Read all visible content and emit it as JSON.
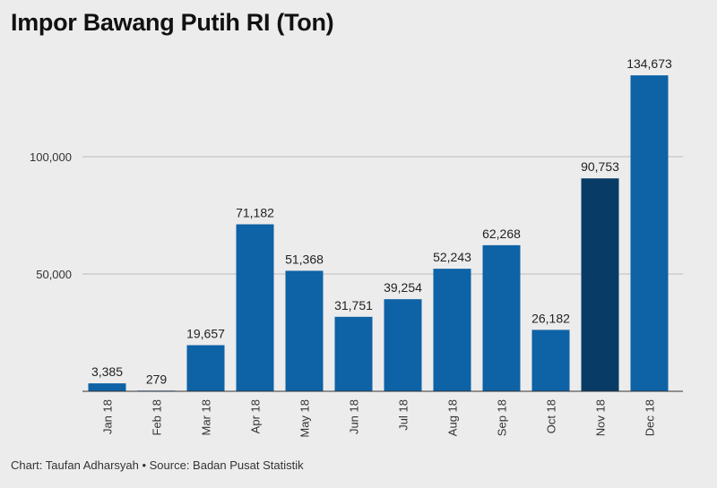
{
  "chart_data": {
    "type": "bar",
    "title": "Impor Bawang Putih RI (Ton)",
    "categories": [
      "Jan 18",
      "Feb 18",
      "Mar 18",
      "Apr 18",
      "May 18",
      "Jun 18",
      "Jul 18",
      "Aug 18",
      "Sep 18",
      "Oct 18",
      "Nov 18",
      "Dec 18"
    ],
    "values": [
      3385,
      279,
      19657,
      71182,
      51368,
      31751,
      39254,
      52243,
      62268,
      26182,
      90753,
      134673
    ],
    "value_labels": [
      "3,385",
      "279",
      "19,657",
      "71,182",
      "51,368",
      "31,751",
      "39,254",
      "52,243",
      "62,268",
      "26,182",
      "90,753",
      "134,673"
    ],
    "yticks": [
      50000,
      100000
    ],
    "ytick_labels": [
      "50,000",
      "100,000"
    ],
    "ylim": [
      0,
      150000
    ],
    "grid": true,
    "colors": {
      "bar": "#0e62a6",
      "highlight": "#083b66",
      "grid": "#bdbdbd",
      "axis": "#333333"
    },
    "highlight_index": 10,
    "xlabel": "",
    "ylabel": ""
  },
  "footer": "Chart: Taufan Adharsyah • Source: Badan Pusat Statistik"
}
